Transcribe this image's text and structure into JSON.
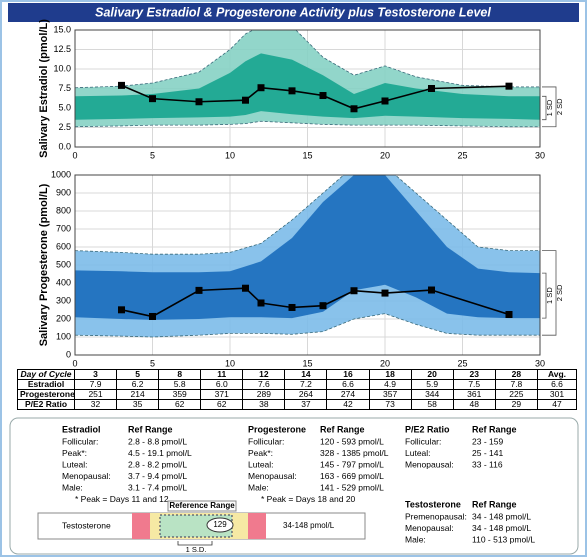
{
  "title": "Salivary Estradiol & Progesterone Activity plus Testosterone Level",
  "chart_data": [
    {
      "type": "line",
      "ylabel": "Salivary Estradiol (pmol/L)",
      "x": [
        3,
        5,
        8,
        11,
        12,
        14,
        16,
        18,
        20,
        23,
        28
      ],
      "values": [
        7.9,
        6.2,
        5.8,
        6.0,
        7.6,
        7.2,
        6.6,
        4.9,
        5.9,
        7.5,
        7.8
      ],
      "color": "#000000",
      "xlim": [
        0,
        30
      ],
      "xticks": [
        0,
        5,
        10,
        15,
        20,
        25,
        30
      ],
      "ylim": [
        0,
        15
      ],
      "yticks": [
        {
          "value": 0,
          "label": "0.0"
        },
        2.5,
        {
          "value": 5,
          "label": "5.0"
        },
        7.5,
        {
          "value": 10,
          "label": "10.0"
        },
        12.5,
        {
          "value": 15,
          "label": "15.0"
        }
      ],
      "grid": true,
      "band_x": [
        0,
        3,
        5,
        8,
        10,
        11,
        12,
        14,
        16,
        18,
        20,
        22,
        25,
        28,
        30
      ],
      "bands": [
        {
          "label": "2 SD",
          "color": "#86d1c4",
          "upper": [
            7.6,
            7.8,
            8.2,
            9.6,
            12.5,
            14.5,
            15.5,
            15.5,
            11.5,
            9.2,
            10.4,
            9.0,
            7.9,
            7.7,
            7.7
          ],
          "lower": [
            2.6,
            2.7,
            2.8,
            2.8,
            2.9,
            3.0,
            3.3,
            3.1,
            2.9,
            2.8,
            2.8,
            2.8,
            2.7,
            2.6,
            2.6
          ]
        },
        {
          "label": "1 SD",
          "color": "#17a58f",
          "upper": [
            6.5,
            6.6,
            6.8,
            7.5,
            9.5,
            11.0,
            12.0,
            11.2,
            9.2,
            6.8,
            8.2,
            7.5,
            6.8,
            6.5,
            6.5
          ],
          "lower": [
            3.5,
            3.6,
            3.7,
            3.8,
            3.9,
            4.1,
            4.6,
            4.2,
            3.9,
            3.7,
            4.0,
            3.9,
            3.7,
            3.6,
            3.5
          ]
        }
      ]
    },
    {
      "type": "line",
      "ylabel": "Salivary Progesterone (pmol/L)",
      "x": [
        3,
        5,
        8,
        11,
        12,
        14,
        16,
        18,
        20,
        23,
        28
      ],
      "values": [
        251,
        214,
        359,
        371,
        289,
        264,
        274,
        357,
        344,
        361,
        225
      ],
      "color": "#000000",
      "xlim": [
        0,
        30
      ],
      "xticks": [
        0,
        5,
        10,
        15,
        20,
        25,
        30
      ],
      "ylim": [
        0,
        1000
      ],
      "yticks": [
        0,
        100,
        200,
        300,
        400,
        500,
        600,
        700,
        800,
        900,
        1000
      ],
      "grid": true,
      "band_x": [
        0,
        3,
        5,
        8,
        10,
        12,
        14,
        16,
        18,
        20,
        22,
        24,
        26,
        28,
        30
      ],
      "bands": [
        {
          "label": "2 SD",
          "color": "#7cbbe9",
          "upper": [
            580,
            570,
            560,
            560,
            570,
            620,
            750,
            900,
            1050,
            1050,
            900,
            750,
            600,
            580,
            580
          ],
          "lower": [
            110,
            105,
            100,
            110,
            120,
            120,
            115,
            130,
            200,
            230,
            170,
            120,
            110,
            110,
            110
          ]
        },
        {
          "label": "1 SD",
          "color": "#1b6dbd",
          "upper": [
            470,
            465,
            460,
            460,
            465,
            520,
            650,
            850,
            1000,
            1000,
            800,
            600,
            480,
            460,
            455
          ],
          "lower": [
            210,
            200,
            195,
            200,
            210,
            210,
            205,
            240,
            360,
            390,
            320,
            230,
            210,
            205,
            205
          ]
        }
      ]
    }
  ],
  "table": {
    "header": [
      "Day of Cycle",
      "3",
      "5",
      "8",
      "11",
      "12",
      "14",
      "16",
      "18",
      "20",
      "23",
      "28",
      "Avg."
    ],
    "rows": [
      [
        "Estradiol",
        "7.9",
        "6.2",
        "5.8",
        "6.0",
        "7.6",
        "7.2",
        "6.6",
        "4.9",
        "5.9",
        "7.5",
        "7.8",
        "6.6"
      ],
      [
        "Progesterone",
        "251",
        "214",
        "359",
        "371",
        "289",
        "264",
        "274",
        "357",
        "344",
        "361",
        "225",
        "301"
      ],
      [
        "P/E2 Ratio",
        "32",
        "35",
        "62",
        "62",
        "38",
        "37",
        "42",
        "73",
        "58",
        "48",
        "29",
        "47"
      ]
    ]
  },
  "reference": {
    "estradiol": {
      "title": "Estradiol",
      "ref_header": "Ref Range",
      "rows": [
        [
          "Follicular:",
          "2.8 - 8.8 pmol/L"
        ],
        [
          "Peak*:",
          "4.5 - 19.1 pmol/L"
        ],
        [
          "Luteal:",
          "2.8 - 8.2 pmol/L"
        ],
        [
          "Menopausal:",
          "3.7 - 9.4 pmol/L"
        ],
        [
          "Male:",
          "3.1 - 7.4 pmol/L"
        ]
      ],
      "note": "* Peak = Days 11 and 12"
    },
    "progesterone": {
      "title": "Progesterone",
      "ref_header": "Ref Range",
      "rows": [
        [
          "Follicular:",
          "120 - 593 pmol/L"
        ],
        [
          "Peak*:",
          "328 - 1385 pmol/L"
        ],
        [
          "Luteal:",
          "145 - 797 pmol/L"
        ],
        [
          "Menopausal:",
          "163 - 669 pmol/L"
        ],
        [
          "Male:",
          "141 - 529 pmol/L"
        ]
      ],
      "note": "* Peak = Days 18 and 20"
    },
    "ratio": {
      "title": "P/E2 Ratio",
      "ref_header": "Ref Range",
      "rows": [
        [
          "Follicular:",
          "23 - 159"
        ],
        [
          "Luteal:",
          "25 - 141"
        ],
        [
          "Menopausal:",
          "33 - 116"
        ]
      ]
    },
    "testosterone": {
      "title": "Testosterone",
      "ref_header": "Ref Range",
      "rows": [
        [
          "Premenopausal:",
          "34 - 148 pmol/L"
        ],
        [
          "Menopausal:",
          "34 - 148 pmol/L"
        ],
        [
          "Male:",
          "110 - 513 pmol/L"
        ]
      ]
    }
  },
  "testosterone_scale": {
    "label": "Testosterone",
    "range_title": "Reference Range",
    "value": 129,
    "range": "34-148 pmol/L",
    "sd": "1 S.D."
  }
}
